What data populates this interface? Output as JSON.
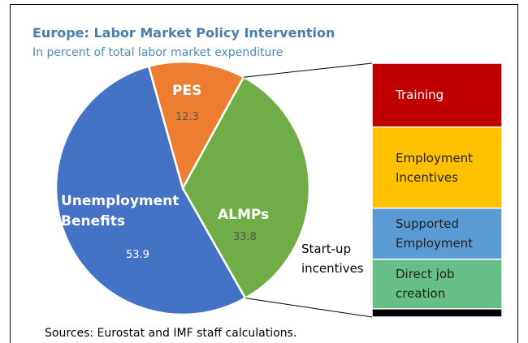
{
  "chart_data": {
    "type": "pie",
    "title": "Europe: Labor Market Policy Intervention",
    "subtitle": "In percent of total labor market expenditure",
    "categories": [
      "Unemployment Benefits",
      "PES",
      "ALMPs"
    ],
    "values": [
      53.9,
      12.3,
      33.8
    ],
    "colors": [
      "#4472c4",
      "#ed7d31",
      "#70ad47"
    ],
    "bar": {
      "categories": [
        "Training",
        "Employment Incentives",
        "Supported Employment",
        "Direct job creation",
        "Start-up incentives"
      ],
      "values": [
        8.5,
        10.8,
        6.8,
        6.6,
        1.1
      ],
      "colors": [
        "#c00000",
        "#ffc000",
        "#5b9bd5",
        "#66bf86",
        "#000000"
      ]
    },
    "source": "Sources: Eurostat and IMF staff calculations."
  }
}
